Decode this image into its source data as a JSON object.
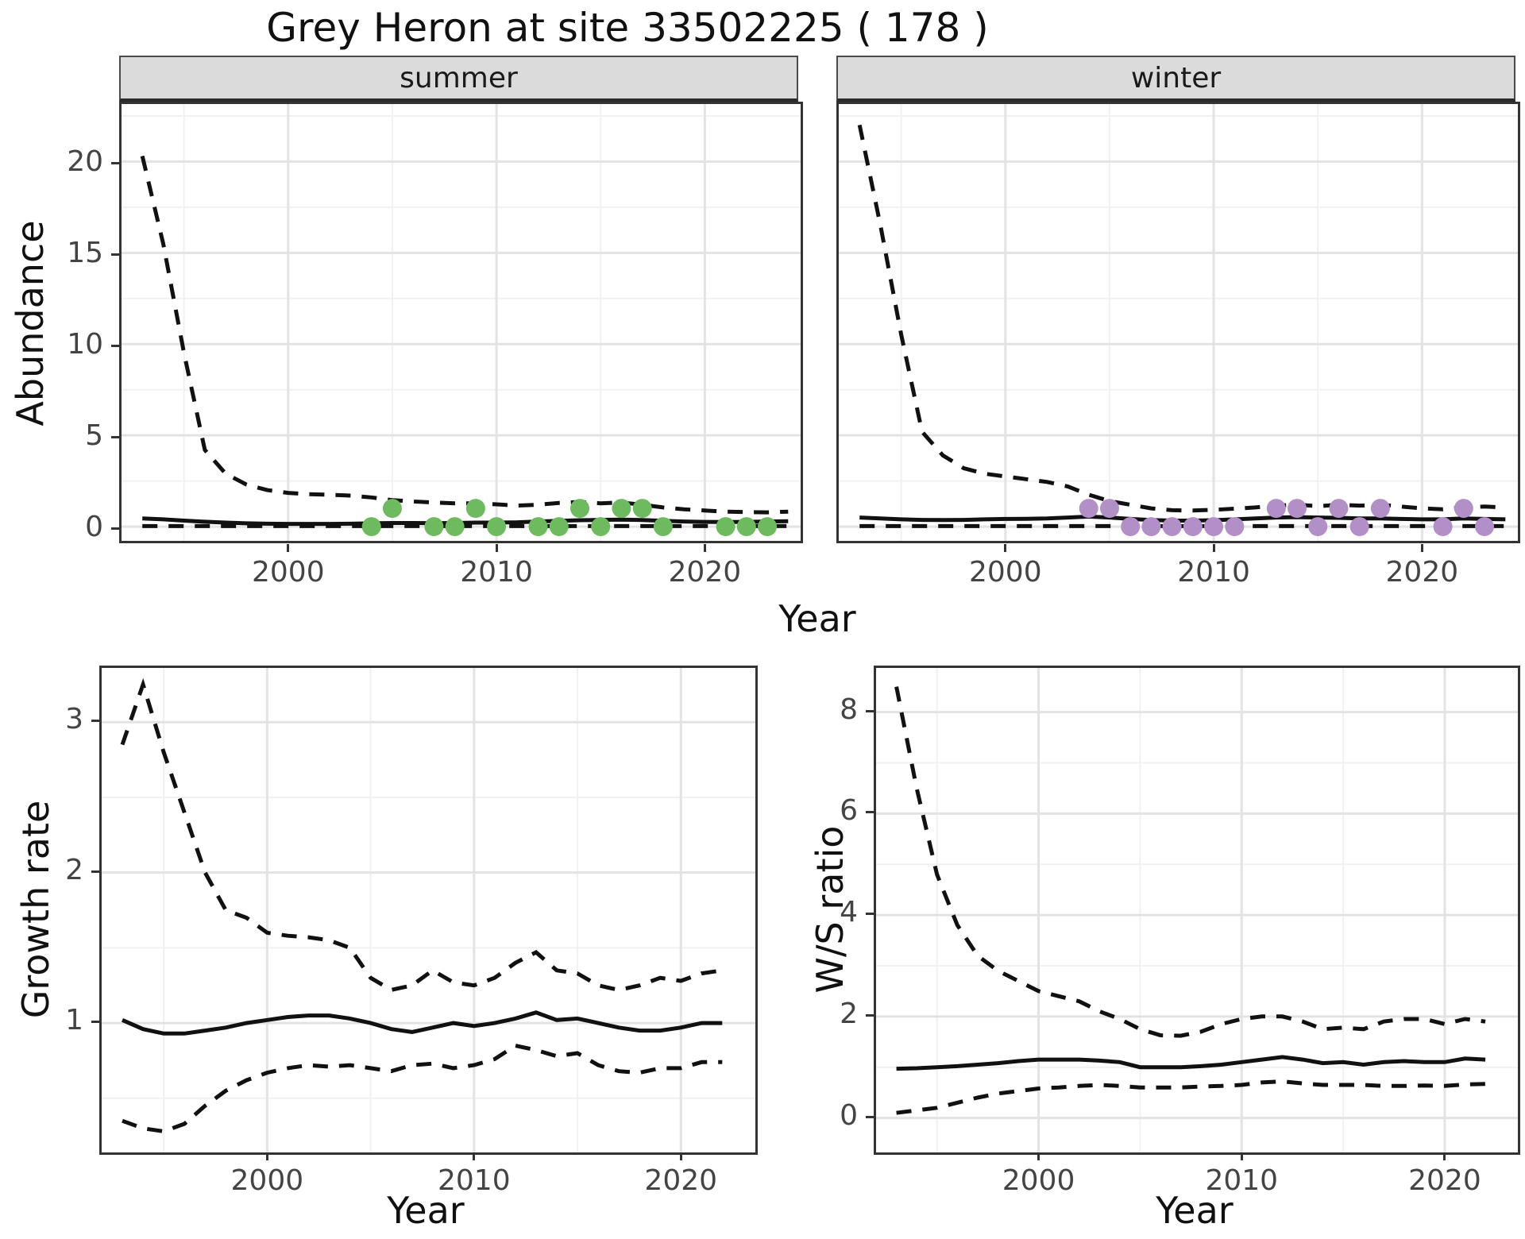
{
  "title": "Grey Heron at site 33502225 ( 178 )",
  "facets": {
    "summer_label": "summer",
    "winter_label": "winter"
  },
  "axis_labels": {
    "abundance": "Abundance",
    "growth_rate": "Growth rate",
    "ws_ratio": "W/S ratio",
    "year": "Year"
  },
  "colors": {
    "summer_point": "#6DBB5E",
    "winter_point": "#B290C7",
    "line": "#111111",
    "grid_major": "#E3E3E3",
    "grid_minor": "#F1F1F1",
    "panel_border": "#333333",
    "strip_bg": "#DBDBDB",
    "axis_text": "#444444"
  },
  "chart_data": [
    {
      "id": "abundance-summer",
      "type": "line+scatter",
      "facet": "summer",
      "xlabel": "Year",
      "ylabel": "Abundance",
      "xlim": [
        1992,
        2024.6
      ],
      "ylim": [
        -0.78,
        23.15
      ],
      "xticks": [
        2000,
        2010,
        2020
      ],
      "xtick_labels": [
        "2000",
        "2010",
        "2020"
      ],
      "yticks": [
        0,
        5,
        10,
        15,
        20
      ],
      "ytick_labels": [
        "0",
        "5",
        "10",
        "15",
        "20"
      ],
      "xminor": [
        1995,
        2005,
        2015
      ],
      "yminor": [
        2.5,
        7.5,
        12.5,
        17.5,
        22.5
      ],
      "show_y_tick_labels": true,
      "point_color": "#6DBB5E",
      "series": {
        "mean": {
          "start": 1993,
          "values": [
            0.45,
            0.4,
            0.33,
            0.27,
            0.22,
            0.18,
            0.16,
            0.15,
            0.15,
            0.15,
            0.16,
            0.18,
            0.2,
            0.2,
            0.19,
            0.2,
            0.22,
            0.22,
            0.24,
            0.28,
            0.32,
            0.35,
            0.37,
            0.38,
            0.36,
            0.32,
            0.28,
            0.26,
            0.25,
            0.26,
            0.28,
            0.3
          ]
        },
        "upper": {
          "start": 1993,
          "values": [
            20.3,
            15.5,
            9.5,
            4.2,
            2.9,
            2.3,
            2.0,
            1.85,
            1.78,
            1.75,
            1.7,
            1.6,
            1.45,
            1.38,
            1.32,
            1.28,
            1.28,
            1.22,
            1.15,
            1.2,
            1.3,
            1.35,
            1.28,
            1.32,
            1.2,
            1.05,
            0.95,
            0.88,
            0.82,
            0.8,
            0.78,
            0.82
          ]
        },
        "lower": {
          "start": 1993,
          "values": [
            0.03,
            0.03,
            0.03,
            0.03,
            0.03,
            0.03,
            0.03,
            0.03,
            0.03,
            0.03,
            0.03,
            0.03,
            0.03,
            0.03,
            0.03,
            0.03,
            0.03,
            0.03,
            0.03,
            0.03,
            0.03,
            0.03,
            0.03,
            0.03,
            0.03,
            0.03,
            0.03,
            0.03,
            0.03,
            0.03,
            0.03,
            0.03
          ]
        }
      },
      "points": [
        [
          2004,
          0
        ],
        [
          2005,
          1
        ],
        [
          2007,
          0
        ],
        [
          2008,
          0
        ],
        [
          2009,
          1
        ],
        [
          2010,
          0
        ],
        [
          2012,
          0
        ],
        [
          2013,
          0
        ],
        [
          2014,
          1
        ],
        [
          2015,
          0
        ],
        [
          2016,
          1
        ],
        [
          2017,
          1
        ],
        [
          2018,
          0
        ],
        [
          2021,
          0
        ],
        [
          2022,
          0
        ],
        [
          2023,
          0
        ]
      ]
    },
    {
      "id": "abundance-winter",
      "type": "line+scatter",
      "facet": "winter",
      "xlabel": "Year",
      "ylabel": "Abundance",
      "xlim": [
        1992,
        2024.6
      ],
      "ylim": [
        -0.78,
        23.15
      ],
      "xticks": [
        2000,
        2010,
        2020
      ],
      "xtick_labels": [
        "2000",
        "2010",
        "2020"
      ],
      "yticks": [
        0,
        5,
        10,
        15,
        20
      ],
      "ytick_labels": [
        "0",
        "5",
        "10",
        "15",
        "20"
      ],
      "xminor": [
        1995,
        2005,
        2015
      ],
      "yminor": [
        2.5,
        7.5,
        12.5,
        17.5,
        22.5
      ],
      "show_y_tick_labels": false,
      "point_color": "#B290C7",
      "series": {
        "mean": {
          "start": 1993,
          "values": [
            0.5,
            0.45,
            0.4,
            0.37,
            0.36,
            0.37,
            0.4,
            0.42,
            0.43,
            0.45,
            0.5,
            0.55,
            0.5,
            0.42,
            0.36,
            0.33,
            0.33,
            0.35,
            0.4,
            0.45,
            0.5,
            0.52,
            0.5,
            0.48,
            0.45,
            0.45,
            0.42,
            0.4,
            0.4,
            0.45,
            0.42,
            0.4
          ]
        },
        "upper": {
          "start": 1993,
          "values": [
            22.0,
            16.5,
            10.5,
            5.2,
            3.9,
            3.2,
            2.9,
            2.75,
            2.6,
            2.45,
            2.2,
            1.75,
            1.4,
            1.2,
            1.0,
            0.9,
            0.88,
            0.92,
            0.98,
            1.05,
            1.15,
            1.2,
            1.12,
            1.2,
            1.15,
            1.2,
            1.1,
            1.0,
            0.95,
            1.05,
            1.1,
            1.05
          ]
        },
        "lower": {
          "start": 1993,
          "values": [
            0.03,
            0.03,
            0.03,
            0.03,
            0.03,
            0.03,
            0.03,
            0.03,
            0.03,
            0.03,
            0.03,
            0.03,
            0.03,
            0.03,
            0.03,
            0.03,
            0.03,
            0.03,
            0.03,
            0.03,
            0.03,
            0.03,
            0.03,
            0.03,
            0.03,
            0.03,
            0.03,
            0.03,
            0.03,
            0.03,
            0.03,
            0.03
          ]
        }
      },
      "points": [
        [
          2004,
          1
        ],
        [
          2005,
          1
        ],
        [
          2006,
          0
        ],
        [
          2007,
          0
        ],
        [
          2008,
          0
        ],
        [
          2009,
          0
        ],
        [
          2010,
          0
        ],
        [
          2011,
          0
        ],
        [
          2013,
          1
        ],
        [
          2014,
          1
        ],
        [
          2015,
          0
        ],
        [
          2016,
          1
        ],
        [
          2017,
          0
        ],
        [
          2018,
          1
        ],
        [
          2021,
          0
        ],
        [
          2022,
          1
        ],
        [
          2023,
          0
        ]
      ]
    },
    {
      "id": "growth-rate",
      "type": "line",
      "facet": "",
      "xlabel": "Year",
      "ylabel": "Growth rate",
      "xlim": [
        1992,
        2023.6
      ],
      "ylim": [
        0.14,
        3.36
      ],
      "xticks": [
        2000,
        2010,
        2020
      ],
      "xtick_labels": [
        "2000",
        "2010",
        "2020"
      ],
      "yticks": [
        1,
        2,
        3
      ],
      "ytick_labels": [
        "1",
        "2",
        "3"
      ],
      "xminor": [
        1995,
        2005,
        2015
      ],
      "yminor": [
        0.5,
        1.5,
        2.5
      ],
      "show_y_tick_labels": true,
      "point_color": "",
      "series": {
        "mean": {
          "start": 1993,
          "values": [
            1.02,
            0.96,
            0.93,
            0.93,
            0.95,
            0.97,
            1.0,
            1.02,
            1.04,
            1.05,
            1.05,
            1.03,
            1.0,
            0.96,
            0.94,
            0.97,
            1.0,
            0.98,
            1.0,
            1.03,
            1.07,
            1.02,
            1.03,
            1.0,
            0.97,
            0.95,
            0.95,
            0.97,
            1.0,
            1.0
          ]
        },
        "upper": {
          "start": 1993,
          "values": [
            2.85,
            3.25,
            2.8,
            2.4,
            2.0,
            1.75,
            1.7,
            1.6,
            1.58,
            1.57,
            1.55,
            1.5,
            1.3,
            1.22,
            1.25,
            1.35,
            1.27,
            1.25,
            1.3,
            1.4,
            1.47,
            1.35,
            1.33,
            1.25,
            1.22,
            1.25,
            1.3,
            1.28,
            1.33,
            1.35
          ]
        },
        "lower": {
          "start": 1993,
          "values": [
            0.35,
            0.3,
            0.28,
            0.33,
            0.45,
            0.55,
            0.62,
            0.67,
            0.7,
            0.72,
            0.71,
            0.72,
            0.7,
            0.68,
            0.72,
            0.73,
            0.7,
            0.72,
            0.76,
            0.85,
            0.82,
            0.78,
            0.8,
            0.72,
            0.68,
            0.67,
            0.7,
            0.7,
            0.74,
            0.74
          ]
        }
      },
      "points": []
    },
    {
      "id": "ws-ratio",
      "type": "line",
      "facet": "",
      "xlabel": "Year",
      "ylabel": "W/S ratio",
      "xlim": [
        1992,
        2023.6
      ],
      "ylim": [
        -0.68,
        8.87
      ],
      "xticks": [
        2000,
        2010,
        2020
      ],
      "xtick_labels": [
        "2000",
        "2010",
        "2020"
      ],
      "yticks": [
        0,
        2,
        4,
        6,
        8
      ],
      "ytick_labels": [
        "0",
        "2",
        "4",
        "6",
        "8"
      ],
      "xminor": [
        1995,
        2005,
        2015
      ],
      "yminor": [
        1,
        3,
        5,
        7
      ],
      "show_y_tick_labels": true,
      "point_color": "",
      "series": {
        "mean": {
          "start": 1993,
          "values": [
            0.97,
            0.98,
            1.0,
            1.02,
            1.05,
            1.08,
            1.12,
            1.15,
            1.15,
            1.15,
            1.13,
            1.1,
            1.0,
            1.0,
            1.0,
            1.02,
            1.05,
            1.1,
            1.15,
            1.2,
            1.15,
            1.08,
            1.1,
            1.05,
            1.1,
            1.12,
            1.1,
            1.1,
            1.17,
            1.15
          ]
        },
        "upper": {
          "start": 1993,
          "values": [
            8.5,
            6.5,
            4.8,
            3.8,
            3.2,
            2.9,
            2.7,
            2.5,
            2.4,
            2.3,
            2.1,
            1.95,
            1.75,
            1.63,
            1.62,
            1.7,
            1.85,
            1.95,
            2.0,
            2.0,
            1.9,
            1.75,
            1.78,
            1.75,
            1.9,
            1.95,
            1.95,
            1.85,
            1.95,
            1.9
          ]
        },
        "lower": {
          "start": 1993,
          "values": [
            0.1,
            0.15,
            0.2,
            0.3,
            0.4,
            0.48,
            0.53,
            0.58,
            0.6,
            0.63,
            0.65,
            0.63,
            0.6,
            0.6,
            0.6,
            0.62,
            0.63,
            0.65,
            0.7,
            0.72,
            0.68,
            0.65,
            0.65,
            0.65,
            0.63,
            0.63,
            0.64,
            0.63,
            0.66,
            0.67
          ]
        }
      },
      "points": []
    }
  ]
}
